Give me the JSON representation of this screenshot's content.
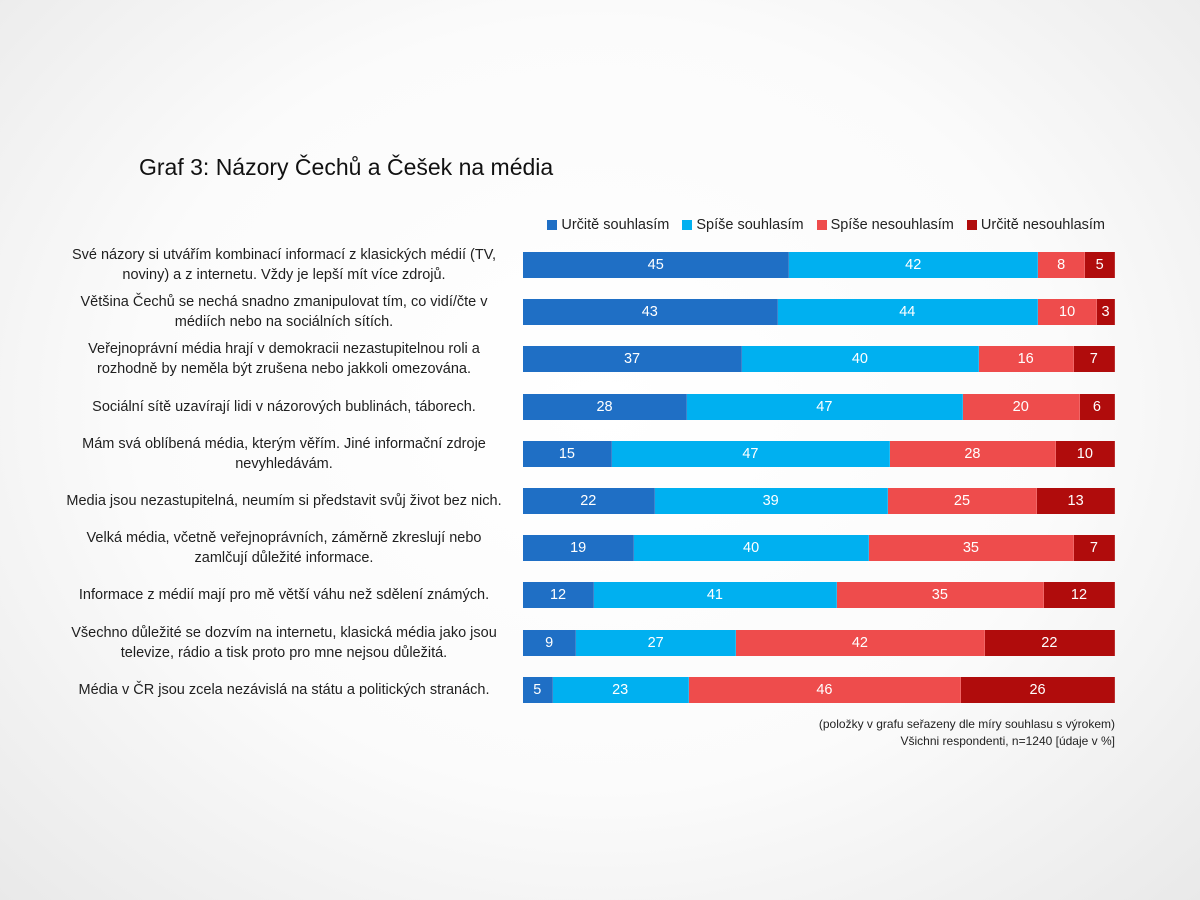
{
  "title": "Graf 3: Názory Čechů a Češek na média",
  "colors": {
    "urcite_souhlasim": "#1f6fc5",
    "spise_souhlasim": "#00b0f0",
    "spise_nesouhlasim": "#ee4c4c",
    "urcite_nesouhlasim": "#b00c0c"
  },
  "note": {
    "line1": "(položky v grafu seřazeny dle míry souhlasu s výrokem)",
    "line2": "Všichni respondenti, n=1240 [údaje v %]"
  },
  "chart_data": {
    "type": "bar",
    "orientation": "horizontal",
    "stacked": true,
    "title": "Graf 3: Názory Čechů a Češek na média",
    "legend_position": "top-right",
    "categories": [
      "Své názory si utvářím kombinací informací z klasických médií (TV, noviny) a z internetu. Vždy je lepší mít více zdrojů.",
      "Většina Čechů se nechá snadno zmanipulovat tím, co vidí/čte v médiích nebo na sociálních sítích.",
      "Veřejnoprávní média hrají v demokracii nezastupitelnou roli a rozhodně by neměla být zrušena nebo jakkoli omezována.",
      "Sociální sítě uzavírají lidi v názorových bublinách, táborech.",
      "Mám svá oblíbená média, kterým věřím. Jiné informační zdroje nevyhledávám.",
      "Media jsou nezastupitelná, neumím si představit svůj život bez nich.",
      "Velká média, včetně veřejnoprávních, záměrně zkreslují nebo zamlčují důležité informace.",
      "Informace z médií mají pro mě větší váhu než sdělení známých.",
      "Všechno důležité se dozvím na internetu, klasická média jako jsou televize, rádio a tisk proto pro mne nejsou důležitá.",
      "Média v ČR jsou zcela nezávislá na státu a politických stranách."
    ],
    "series": [
      {
        "name": "Určitě souhlasím",
        "color": "#1f6fc5",
        "values": [
          45,
          43,
          37,
          28,
          15,
          22,
          19,
          12,
          9,
          5
        ]
      },
      {
        "name": "Spíše souhlasím",
        "color": "#00b0f0",
        "values": [
          42,
          44,
          40,
          47,
          47,
          39,
          40,
          41,
          27,
          23
        ]
      },
      {
        "name": "Spíše nesouhlasím",
        "color": "#ee4c4c",
        "values": [
          8,
          10,
          16,
          20,
          28,
          25,
          35,
          35,
          42,
          46
        ]
      },
      {
        "name": "Určitě nesouhlasím",
        "color": "#b00c0c",
        "values": [
          5,
          3,
          7,
          6,
          10,
          13,
          7,
          12,
          22,
          26
        ]
      }
    ]
  }
}
